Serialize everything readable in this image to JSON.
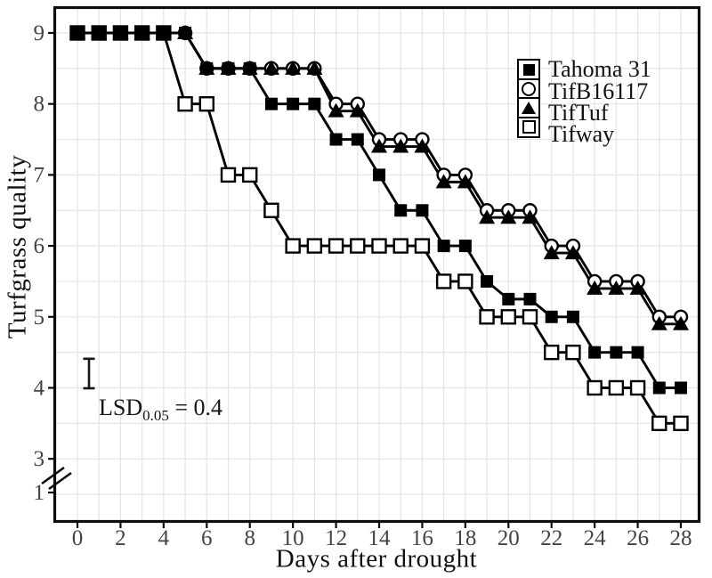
{
  "chart_data": {
    "type": "line",
    "title": "",
    "xlabel": "Days after drought",
    "ylabel": "Turfgrass quality",
    "x": [
      0,
      1,
      2,
      3,
      4,
      5,
      6,
      7,
      8,
      9,
      10,
      11,
      12,
      13,
      14,
      15,
      16,
      17,
      18,
      19,
      20,
      21,
      22,
      23,
      24,
      25,
      26,
      27,
      28
    ],
    "series": [
      {
        "name": "Tahoma 31",
        "marker": "filled-square",
        "values": [
          9,
          9,
          9,
          9,
          9,
          9,
          8.5,
          8.5,
          8.5,
          8,
          8,
          8,
          7.5,
          7.5,
          7,
          6.5,
          6.5,
          6,
          6,
          5.5,
          5.25,
          5.25,
          5,
          5,
          4.5,
          4.5,
          4.5,
          4,
          4
        ]
      },
      {
        "name": "TifB16117",
        "marker": "open-circle",
        "values": [
          9,
          9,
          9,
          9,
          9,
          9,
          8.5,
          8.5,
          8.5,
          8.5,
          8.5,
          8.5,
          8,
          8,
          7.5,
          7.5,
          7.5,
          7,
          7,
          6.5,
          6.5,
          6.5,
          6,
          6,
          5.5,
          5.5,
          5.5,
          5,
          5
        ]
      },
      {
        "name": "TifTuf",
        "marker": "filled-triangle",
        "values": [
          9,
          9,
          9,
          9,
          9,
          9,
          8.5,
          8.5,
          8.5,
          8.5,
          8.5,
          8.5,
          7.9,
          7.9,
          7.4,
          7.4,
          7.4,
          6.9,
          6.9,
          6.4,
          6.4,
          6.4,
          5.9,
          5.9,
          5.4,
          5.4,
          5.4,
          4.9,
          4.9
        ]
      },
      {
        "name": "Tifway",
        "marker": "open-square",
        "values": [
          9,
          9,
          9,
          9,
          9,
          8,
          8,
          7,
          7,
          6.5,
          6,
          6,
          6,
          6,
          6,
          6,
          6,
          5.5,
          5.5,
          5,
          5,
          5,
          4.5,
          4.5,
          4,
          4,
          4,
          3.5,
          3.5
        ]
      }
    ],
    "x_tick_labels": [
      "0",
      "2",
      "4",
      "6",
      "8",
      "10",
      "12",
      "14",
      "16",
      "18",
      "20",
      "22",
      "24",
      "26",
      "28"
    ],
    "y_tick_labels": [
      "9",
      "8",
      "7",
      "6",
      "5",
      "4",
      "3",
      "1"
    ],
    "y_axis_break": {
      "between": [
        3,
        1
      ]
    },
    "ylim_visible": [
      3,
      9.4
    ],
    "xlim": [
      0,
      28
    ],
    "grid": true,
    "legend_position": "top-right",
    "annotation": {
      "label": "LSD",
      "subscript": "0.05",
      "equals_value": " = 0.4",
      "value": 0.4
    }
  },
  "colors": {
    "line": "#000000",
    "grid": "#e4e4e4",
    "axis": "#0d0d0d",
    "tick_label": "#444444",
    "text": "#111111",
    "background": "#ffffff"
  }
}
